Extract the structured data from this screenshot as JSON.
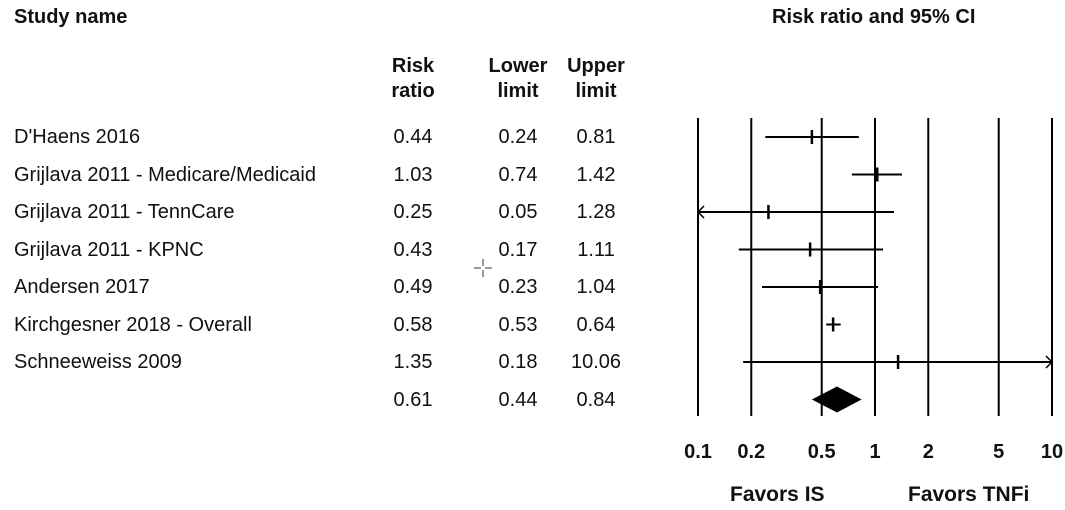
{
  "header": {
    "study_name": "Study name",
    "ci_title": "Risk ratio and 95% CI",
    "risk_ratio": [
      "Risk",
      "ratio"
    ],
    "lower_limit": [
      "Lower",
      "limit"
    ],
    "upper_limit": [
      "Upper",
      "limit"
    ]
  },
  "studies": [
    {
      "name": "D'Haens 2016",
      "rr": "0.44",
      "lower": "0.24",
      "upper": "0.81"
    },
    {
      "name": "Grijlava 2011 - Medicare/Medicaid",
      "rr": "1.03",
      "lower": "0.74",
      "upper": "1.42"
    },
    {
      "name": "Grijlava 2011 - TennCare",
      "rr": "0.25",
      "lower": "0.05",
      "upper": "1.28"
    },
    {
      "name": "Grijlava 2011 - KPNC",
      "rr": "0.43",
      "lower": "0.17",
      "upper": "1.11"
    },
    {
      "name": "Andersen 2017",
      "rr": "0.49",
      "lower": "0.23",
      "upper": "1.04"
    },
    {
      "name": "Kirchgesner 2018 - Overall",
      "rr": "0.58",
      "lower": "0.53",
      "upper": "0.64"
    },
    {
      "name": "Schneeweiss 2009",
      "rr": "1.35",
      "lower": "0.18",
      "upper": "10.06"
    }
  ],
  "pooled": {
    "name": "",
    "rr": "0.61",
    "lower": "0.44",
    "upper": "0.84"
  },
  "favors": {
    "left": "Favors IS",
    "right": "Favors TNFi"
  },
  "chart_data": {
    "type": "forest",
    "title": "Risk ratio and 95% CI",
    "x_scale": "log",
    "xlim": [
      0.1,
      10
    ],
    "x_ticks": [
      0.1,
      0.2,
      0.5,
      1,
      2,
      5,
      10
    ],
    "x_tick_labels": [
      "0.1",
      "0.2",
      "0.5",
      "1",
      "2",
      "5",
      "10"
    ],
    "series": [
      {
        "study": "D'Haens 2016",
        "rr": 0.44,
        "lower": 0.24,
        "upper": 0.81
      },
      {
        "study": "Grijlava 2011 - Medicare/Medicaid",
        "rr": 1.03,
        "lower": 0.74,
        "upper": 1.42
      },
      {
        "study": "Grijlava 2011 - TennCare",
        "rr": 0.25,
        "lower": 0.05,
        "upper": 1.28
      },
      {
        "study": "Grijlava 2011 - KPNC",
        "rr": 0.43,
        "lower": 0.17,
        "upper": 1.11
      },
      {
        "study": "Andersen 2017",
        "rr": 0.49,
        "lower": 0.23,
        "upper": 1.04
      },
      {
        "study": "Kirchgesner 2018 - Overall",
        "rr": 0.58,
        "lower": 0.53,
        "upper": 0.64
      },
      {
        "study": "Schneeweiss 2009",
        "rr": 1.35,
        "lower": 0.18,
        "upper": 10.06
      }
    ],
    "pooled": {
      "rr": 0.61,
      "lower": 0.44,
      "upper": 0.84
    },
    "xlabel_left": "Favors IS",
    "xlabel_right": "Favors TNFi"
  }
}
